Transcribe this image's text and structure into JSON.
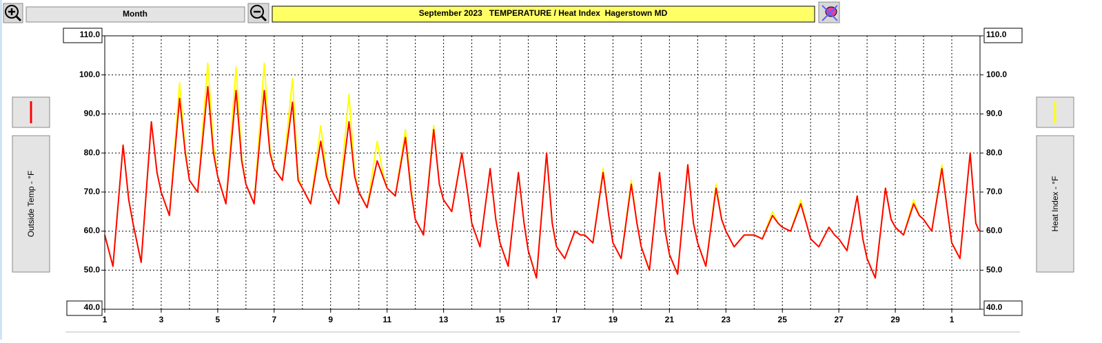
{
  "chart_data": {
    "type": "line",
    "period_button": "Month",
    "title": "September 2023   TEMPERATURE / Heat Index  Hagerstown MD",
    "ylabel": "Outside Temp - °F",
    "y2label": "Heat Index - °F",
    "xlim": [
      1,
      32
    ],
    "xticks": [
      1,
      3,
      5,
      7,
      9,
      11,
      13,
      15,
      17,
      19,
      21,
      23,
      25,
      27,
      29,
      {
        "value": 31,
        "label": "1"
      }
    ],
    "ylim": [
      40,
      110
    ],
    "yticks": [
      {
        "value": 40,
        "label": "40.0"
      },
      {
        "value": 50,
        "label": "50.0"
      },
      {
        "value": 60,
        "label": "60.0"
      },
      {
        "value": 70,
        "label": "70.0"
      },
      {
        "value": 80,
        "label": "80.0"
      },
      {
        "value": 90,
        "label": "90.0"
      },
      {
        "value": 100,
        "label": "100.0"
      },
      {
        "value": 110,
        "label": "110.0"
      }
    ],
    "y2lim": [
      40,
      110
    ],
    "y2ticks": [
      {
        "value": 40,
        "label": "40.0"
      },
      {
        "value": 50,
        "label": "50.0"
      },
      {
        "value": 60,
        "label": "60.0"
      },
      {
        "value": 70,
        "label": "70.0"
      },
      {
        "value": 80,
        "label": "80.0"
      },
      {
        "value": 90,
        "label": "90.0"
      },
      {
        "value": 100,
        "label": "100.0"
      },
      {
        "value": 110,
        "label": "110.0"
      }
    ],
    "grid": true,
    "x": [
      1,
      1.29,
      1.65,
      1.85,
      2,
      2.29,
      2.65,
      2.85,
      3,
      3.29,
      3.65,
      3.85,
      4,
      4.29,
      4.65,
      4.85,
      5,
      5.29,
      5.65,
      5.85,
      6,
      6.29,
      6.65,
      6.85,
      7,
      7.29,
      7.65,
      7.85,
      8,
      8.29,
      8.65,
      8.85,
      9,
      9.29,
      9.65,
      9.85,
      10,
      10.29,
      10.65,
      10.85,
      11,
      11.29,
      11.65,
      11.85,
      12,
      12.29,
      12.65,
      12.85,
      13,
      13.29,
      13.65,
      13.85,
      14,
      14.29,
      14.65,
      14.85,
      15,
      15.29,
      15.65,
      15.85,
      16,
      16.29,
      16.65,
      16.85,
      17,
      17.29,
      17.65,
      17.85,
      18,
      18.29,
      18.65,
      18.85,
      19,
      19.29,
      19.65,
      19.85,
      20,
      20.29,
      20.65,
      20.85,
      21,
      21.29,
      21.65,
      21.85,
      22,
      22.29,
      22.65,
      22.85,
      23,
      23.29,
      23.65,
      23.85,
      24,
      24.29,
      24.65,
      24.85,
      25,
      25.29,
      25.65,
      25.85,
      26,
      26.29,
      26.65,
      26.85,
      27,
      27.29,
      27.65,
      27.85,
      28,
      28.29,
      28.65,
      28.85,
      29,
      29.29,
      29.65,
      29.85,
      30,
      30.29,
      30.65,
      30.85,
      31,
      31.29,
      31.65,
      31.85,
      31.97
    ],
    "series": [
      {
        "color": "#ff0000",
        "axis": "y",
        "values": [
          59,
          51,
          82,
          68,
          62,
          52,
          88,
          75,
          70,
          64,
          94,
          80,
          73,
          70,
          97,
          80,
          74,
          67,
          96,
          78,
          72,
          67,
          96,
          80,
          76,
          73,
          93,
          73,
          71,
          67,
          83,
          74,
          71,
          67,
          88,
          74,
          70,
          66,
          78,
          74,
          71,
          69,
          84,
          70,
          63,
          59,
          86,
          72,
          68,
          65,
          80,
          70,
          62,
          56,
          76,
          63,
          57,
          51,
          75,
          62,
          55,
          48,
          80,
          62,
          56,
          53,
          60,
          59,
          59,
          57,
          75,
          64,
          57,
          53,
          72,
          62,
          56,
          50,
          75,
          60,
          54,
          49,
          77,
          62,
          57,
          51,
          71,
          63,
          60,
          56,
          59,
          59,
          59,
          58,
          64,
          62,
          61,
          60,
          67,
          62,
          58,
          56,
          61,
          59,
          58,
          55,
          69,
          58,
          53,
          48,
          71,
          63,
          61,
          59,
          67,
          64,
          63,
          60,
          76,
          65,
          57,
          53,
          80,
          62,
          60
        ]
      },
      {
        "color": "#ffff00",
        "axis": "y2",
        "values": [
          59,
          51,
          82,
          68,
          62,
          52,
          88,
          75,
          70,
          64,
          98,
          81,
          73,
          70,
          103,
          82,
          74,
          67,
          102,
          79,
          72,
          67,
          103,
          81,
          76,
          73,
          99,
          74,
          71,
          67,
          87,
          75,
          71,
          67,
          95,
          75,
          70,
          66,
          83,
          75,
          71,
          69,
          86,
          71,
          63,
          59,
          87,
          72,
          68,
          65,
          80,
          70,
          62,
          56,
          76,
          63,
          57,
          51,
          75,
          62,
          55,
          48,
          80,
          62,
          56,
          53,
          60,
          59,
          59,
          57,
          76,
          64,
          57,
          53,
          73,
          62,
          56,
          50,
          75,
          60,
          54,
          49,
          77,
          62,
          57,
          51,
          72,
          63,
          60,
          56,
          59,
          59,
          59,
          58,
          65,
          62,
          61,
          60,
          68,
          62,
          58,
          56,
          61,
          59,
          58,
          55,
          69,
          58,
          53,
          48,
          71,
          63,
          61,
          59,
          68,
          64,
          63,
          60,
          77,
          65,
          57,
          53,
          80,
          62,
          60
        ]
      }
    ]
  }
}
